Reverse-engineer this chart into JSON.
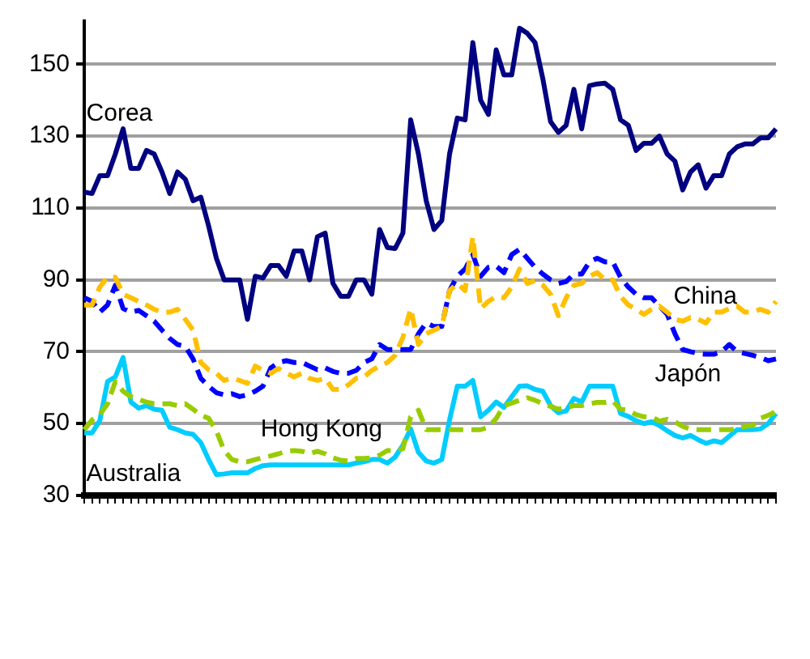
{
  "chart_data": {
    "type": "line",
    "categories": [
      null,
      null,
      null,
      null,
      null,
      null,
      null,
      null,
      null,
      null,
      null,
      null,
      null,
      null,
      null,
      null,
      null,
      null,
      null,
      null,
      null,
      null,
      null,
      null,
      null,
      null,
      null,
      null,
      null,
      null,
      null,
      null,
      null,
      null,
      null,
      null,
      null,
      null,
      null,
      null,
      null,
      null,
      null,
      null,
      null,
      null,
      null,
      null,
      null,
      null,
      null,
      null,
      null,
      null,
      null,
      null,
      null,
      null,
      null,
      null,
      null,
      null,
      null,
      null,
      null,
      null,
      null,
      null,
      null,
      null,
      null,
      null,
      null,
      null,
      null,
      null,
      null,
      null,
      null,
      null,
      null,
      null,
      null,
      null,
      null,
      null,
      null,
      null,
      null,
      null
    ],
    "ylim": [
      30,
      162
    ],
    "yticks": [
      30,
      50,
      70,
      90,
      110,
      130,
      150
    ],
    "grid": "y",
    "marker": "none",
    "series": [
      {
        "name": "Corea",
        "color": "#000080",
        "line_style": "solid",
        "values": [
          114.4,
          114,
          119,
          119,
          125,
          132,
          121,
          121,
          126,
          125,
          120,
          114,
          120,
          118,
          112,
          113,
          105,
          96,
          90,
          90,
          90,
          79,
          91,
          90.5,
          94,
          94,
          91,
          98,
          98,
          90,
          102,
          103,
          89,
          85.4,
          85.4,
          90,
          90,
          86,
          104,
          99,
          98.7,
          103,
          134.5,
          125,
          112,
          104,
          106.5,
          125,
          135,
          134.5,
          156,
          140,
          136,
          154,
          147,
          147,
          160,
          158.6,
          156,
          146,
          134,
          131,
          133,
          143,
          132,
          144,
          144.5,
          144.7,
          143,
          134.5,
          133,
          126,
          128,
          128,
          130,
          125,
          123,
          115,
          120,
          122,
          115.5,
          119,
          119,
          125,
          127,
          127.8,
          127.8,
          129.5,
          129.5,
          132
        ]
      },
      {
        "name": "China",
        "color": "#ffc000",
        "line_style": "dashed",
        "values": [
          83,
          83,
          88,
          90.7,
          90.7,
          86,
          85,
          84,
          83,
          81.8,
          81,
          81,
          81.8,
          79,
          76,
          67,
          65,
          64,
          62,
          62.6,
          62,
          61.2,
          66,
          64.8,
          64,
          65.3,
          64,
          63,
          64,
          62.6,
          62,
          62.6,
          59.5,
          59.5,
          60.8,
          62.6,
          63,
          64.8,
          66,
          67,
          69,
          74,
          82,
          72,
          75,
          76,
          77,
          87,
          89,
          87,
          102,
          82,
          84,
          85.4,
          85,
          88,
          93,
          89,
          89.8,
          88.5,
          86,
          80,
          85,
          88.5,
          89,
          91,
          92,
          90,
          90,
          85.4,
          83,
          81.8,
          80.4,
          81.8,
          82.7,
          81,
          79,
          78.5,
          79.5,
          79,
          78,
          81,
          81,
          82,
          82.7,
          81,
          81,
          81.8,
          81,
          84
        ]
      },
      {
        "name": "Japón",
        "color": "#0000ff",
        "line_style": "dashed",
        "values": [
          85,
          84,
          81,
          83,
          88.5,
          82,
          81,
          81.5,
          80,
          78.5,
          76,
          73.7,
          72,
          71.5,
          68,
          62.6,
          60.4,
          58.6,
          58,
          58.3,
          57.5,
          58,
          59,
          60.4,
          65.5,
          67,
          67.5,
          67,
          67,
          66,
          65,
          65.5,
          64.5,
          64,
          64,
          64.8,
          67,
          68,
          72,
          70.6,
          70.6,
          70.6,
          70.6,
          75,
          78,
          77,
          77,
          87,
          91,
          93,
          97,
          91,
          93.5,
          93.8,
          92,
          97,
          98.5,
          96,
          93.5,
          91.6,
          90,
          89,
          89.5,
          91.6,
          91.6,
          95,
          96,
          95,
          95,
          90.7,
          88,
          86,
          85,
          85,
          82.7,
          80.4,
          75,
          70.6,
          70,
          69.5,
          69.3,
          69.3,
          70,
          72,
          70,
          69.5,
          69,
          68.4,
          67.5,
          68
        ]
      },
      {
        "name": "Hong Kong",
        "color": "#99cc00",
        "line_style": "dashed",
        "values": [
          48.3,
          51,
          52.5,
          55.5,
          61.7,
          59,
          57.5,
          56.7,
          56,
          55.5,
          55.5,
          55.5,
          55,
          55.5,
          54,
          52.3,
          51.5,
          48,
          42.5,
          40,
          39.4,
          39.4,
          40,
          40.5,
          41,
          41.6,
          42.3,
          42.5,
          42.3,
          41.6,
          42.3,
          41.6,
          40.5,
          39.8,
          39.6,
          40.3,
          40.3,
          40.5,
          41.2,
          42.5,
          42.5,
          43,
          51.9,
          53.7,
          48.3,
          48.3,
          48.3,
          48.3,
          48.3,
          48.3,
          48.3,
          48.3,
          49,
          51.4,
          55,
          55.7,
          56.5,
          57.2,
          56.5,
          55.5,
          54.8,
          54,
          54.5,
          55,
          55,
          55.5,
          55.9,
          55.9,
          56.3,
          54,
          53.7,
          52.5,
          51.9,
          51.9,
          50.7,
          51.2,
          50.5,
          49.2,
          48.5,
          48.3,
          48.3,
          48.3,
          48.3,
          48.3,
          48.5,
          49.2,
          49.5,
          51.5,
          52.3,
          53.3
        ]
      },
      {
        "name": "Australia",
        "color": "#00ccff",
        "line_style": "solid",
        "values": [
          47.4,
          47.4,
          50.8,
          61.7,
          63,
          68.4,
          56,
          54.3,
          55,
          54,
          53.7,
          49,
          48.3,
          47.4,
          47,
          44.7,
          40,
          35.8,
          36,
          36.3,
          36.3,
          36.3,
          37.5,
          38.3,
          38.5,
          38.5,
          38.5,
          38.5,
          38.5,
          38.5,
          38.5,
          38.5,
          38.5,
          38.5,
          38.5,
          39,
          39.4,
          40,
          40,
          39,
          40.7,
          44,
          48.5,
          42,
          39.6,
          39,
          40,
          51,
          60.4,
          60.4,
          62,
          51.9,
          53.7,
          56,
          54.5,
          57.5,
          60.4,
          60.5,
          59.5,
          59,
          55,
          53,
          53.5,
          57,
          56,
          60.4,
          60.4,
          60.4,
          60.4,
          52.8,
          52,
          50.8,
          50,
          50.5,
          49.5,
          48,
          46.7,
          46,
          46.7,
          45.5,
          44.5,
          45.2,
          44.7,
          46.5,
          48.3,
          48.3,
          48.3,
          48.5,
          50,
          52.8
        ]
      }
    ]
  }
}
